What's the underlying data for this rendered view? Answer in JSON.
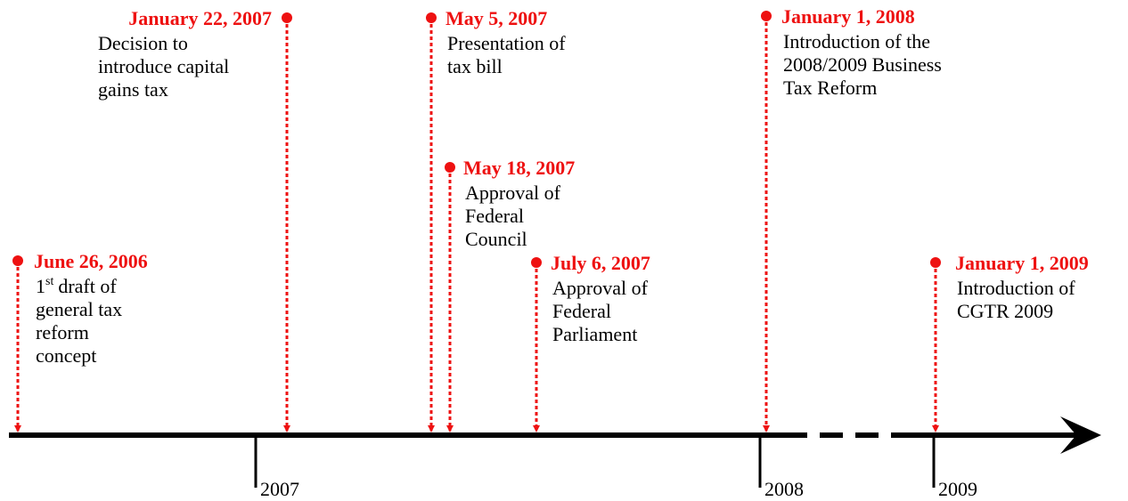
{
  "events": [
    {
      "date": "June 26, 2006",
      "lead_number": "1",
      "lead_sup": "st",
      "lines": [
        "draft of",
        "general tax",
        "reform",
        "concept"
      ]
    },
    {
      "date": "January 22, 2007",
      "lines": [
        "Decision to",
        "introduce capital",
        "gains tax"
      ]
    },
    {
      "date": "May 5, 2007",
      "lines": [
        "Presentation of",
        "tax bill"
      ]
    },
    {
      "date": "May 18, 2007",
      "lines": [
        "Approval of",
        "Federal",
        "Council"
      ]
    },
    {
      "date": "July 6, 2007",
      "lines": [
        "Approval of",
        "Federal",
        "Parliament"
      ]
    },
    {
      "date": "January 1, 2008",
      "lines": [
        "Introduction of the",
        "2008/2009 Business",
        "Tax Reform"
      ]
    },
    {
      "date": "January 1, 2009",
      "lines": [
        "Introduction of",
        "CGTR 2009"
      ]
    }
  ],
  "years": [
    "2007",
    "2008",
    "2009"
  ]
}
